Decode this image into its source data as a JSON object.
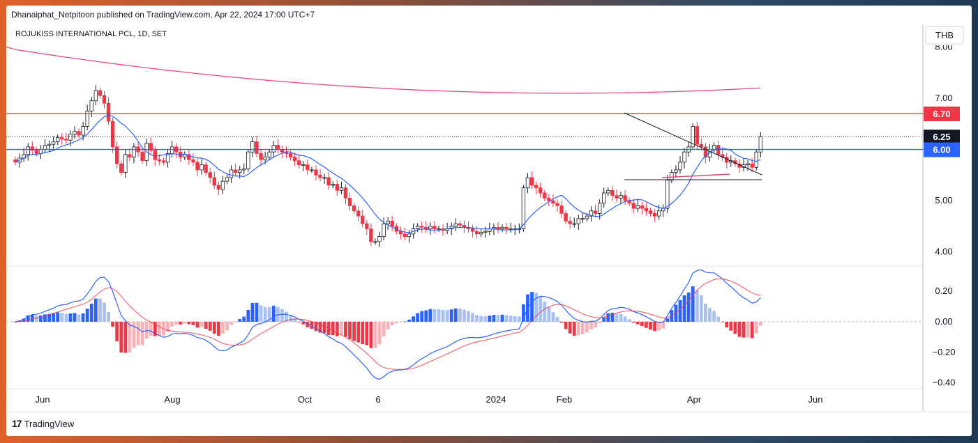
{
  "publisher_line": "Dhanaiphat_Netpitoon published on TradingView.com, Apr 22, 2024 17:00 UTC+7",
  "brand": "TradingView",
  "chart_data": [
    {
      "type": "candlestick",
      "title": "ROJUKISS INTERNATIONAL PCL, 1D, SET",
      "currency": "THB",
      "x_tick_labels": [
        "Jun",
        "Aug",
        "Oct",
        "6",
        "2024",
        "Feb",
        "Apr",
        "Jun"
      ],
      "y_tick_labels": [
        "4.00",
        "5.00",
        "7.00"
      ],
      "y_top_partial_label": "8.00",
      "ylim": [
        3.75,
        8.4
      ],
      "price_labels": [
        {
          "value": 6.7,
          "text": "6.70",
          "color": "#f23645"
        },
        {
          "value": 6.25,
          "text": "6.25",
          "color": "#131722"
        },
        {
          "value": 6.0,
          "text": "6.00",
          "color": "#2962ff"
        }
      ],
      "horizontal_lines": [
        {
          "value": 6.7,
          "color": "#f23645",
          "style": "solid"
        },
        {
          "value": 6.0,
          "color": "#2962ff",
          "style": "solid"
        },
        {
          "value": 6.25,
          "color": "#131722",
          "style": "dotted"
        }
      ],
      "close_series": [
        5.75,
        5.83,
        5.9,
        6.05,
        5.98,
        5.92,
        6.0,
        6.08,
        6.1,
        6.15,
        6.23,
        6.2,
        6.18,
        6.3,
        6.35,
        6.28,
        6.45,
        6.75,
        6.95,
        7.15,
        7.05,
        6.9,
        6.55,
        6.05,
        5.72,
        5.55,
        5.9,
        5.85,
        6.05,
        5.95,
        5.78,
        6.12,
        5.98,
        5.8,
        5.78,
        5.75,
        5.92,
        6.05,
        5.95,
        5.85,
        5.9,
        5.8,
        5.75,
        5.6,
        5.7,
        5.55,
        5.45,
        5.3,
        5.22,
        5.38,
        5.45,
        5.6,
        5.55,
        5.6,
        5.62,
        5.95,
        6.15,
        5.92,
        5.8,
        5.85,
        5.95,
        6.08,
        6.0,
        5.95,
        5.92,
        5.85,
        5.78,
        5.7,
        5.7,
        5.6,
        5.6,
        5.5,
        5.45,
        5.45,
        5.3,
        5.32,
        5.2,
        5.25,
        5.05,
        4.9,
        4.8,
        4.7,
        4.55,
        4.45,
        4.2,
        4.2,
        4.3,
        4.55,
        4.6,
        4.5,
        4.4,
        4.35,
        4.3,
        4.35,
        4.45,
        4.5,
        4.48,
        4.45,
        4.5,
        4.45,
        4.45,
        4.42,
        4.45,
        4.5,
        4.55,
        4.52,
        4.48,
        4.45,
        4.4,
        4.35,
        4.38,
        4.4,
        4.45,
        4.48,
        4.45,
        4.48,
        4.45,
        4.45,
        4.45,
        4.45,
        5.25,
        5.45,
        5.3,
        5.25,
        5.15,
        5.05,
        5.0,
        4.95,
        4.9,
        4.75,
        4.6,
        4.55,
        4.55,
        4.65,
        4.65,
        4.7,
        4.8,
        4.75,
        4.95,
        5.15,
        5.2,
        5.1,
        5.05,
        5.1,
        5.0,
        4.95,
        4.85,
        4.9,
        4.85,
        4.8,
        4.75,
        4.7,
        4.8,
        4.85,
        5.4,
        5.55,
        5.6,
        5.75,
        5.95,
        6.05,
        6.45,
        6.1,
        6.05,
        5.85,
        6.0,
        6.08,
        5.9,
        5.85,
        5.75,
        5.78,
        5.72,
        5.65,
        5.7,
        5.72,
        5.65,
        5.95,
        6.25
      ],
      "panes": [
        {
          "name": "MACD",
          "y_tick_labels": [
            "0.20",
            "0.00",
            "−0.20",
            "−0.40"
          ],
          "ylim": [
            -0.42,
            0.36
          ]
        }
      ]
    }
  ]
}
